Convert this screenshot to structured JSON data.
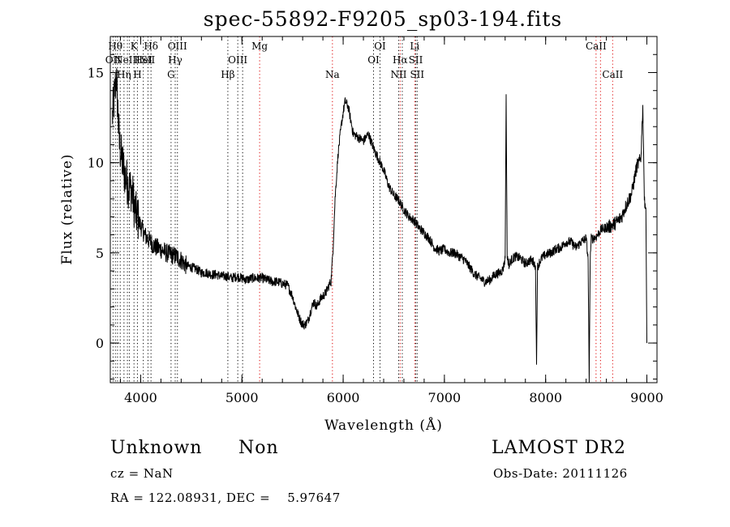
{
  "chart_data": {
    "type": "line",
    "title": "spec-55892-F9205_sp03-194.fits",
    "xlabel": "Wavelength (Å)",
    "ylabel": "Flux (relative)",
    "xlim": [
      3700,
      9100
    ],
    "ylim": [
      -2.2,
      17.0
    ],
    "xticks": [
      {
        "v": 4000,
        "label": "4000"
      },
      {
        "v": 5000,
        "label": "5000"
      },
      {
        "v": 6000,
        "label": "6000"
      },
      {
        "v": 7000,
        "label": "7000"
      },
      {
        "v": 8000,
        "label": "8000"
      },
      {
        "v": 9000,
        "label": "9000"
      }
    ],
    "yticks": [
      {
        "v": 0,
        "label": "0"
      },
      {
        "v": 5,
        "label": "5"
      },
      {
        "v": 10,
        "label": "10"
      },
      {
        "v": 15,
        "label": "15"
      }
    ],
    "x_minor_step": 200,
    "y_minor_step": 1,
    "grid": false,
    "series": [
      {
        "x": [
          3720,
          3760,
          3790,
          3820,
          3850,
          3880,
          3910,
          3950,
          4000,
          4050,
          4100,
          4150,
          4200,
          4250,
          4300,
          4350,
          4400,
          4450,
          4500,
          4550,
          4600,
          4650,
          4700,
          4750,
          4800,
          4850,
          4900,
          4950,
          5000,
          5050,
          5100,
          5150,
          5200,
          5250,
          5300,
          5350,
          5400,
          5450,
          5500,
          5530,
          5560,
          5590,
          5620,
          5650,
          5680,
          5710,
          5740,
          5770,
          5800,
          5830,
          5860,
          5880,
          5900,
          5920,
          5950,
          5980,
          6000,
          6020,
          6050,
          6080,
          6100,
          6150,
          6200,
          6250,
          6300,
          6350,
          6400,
          6450,
          6500,
          6550,
          6600,
          6650,
          6700,
          6750,
          6800,
          6850,
          6900,
          6950,
          7000,
          7050,
          7100,
          7150,
          7200,
          7250,
          7300,
          7350,
          7400,
          7450,
          7500,
          7550,
          7580,
          7600,
          7610,
          7620,
          7640,
          7660,
          7700,
          7750,
          7800,
          7850,
          7880,
          7900,
          7910,
          7920,
          7940,
          7960,
          8000,
          8050,
          8100,
          8150,
          8200,
          8250,
          8300,
          8350,
          8400,
          8420,
          8430,
          8440,
          8450,
          8470,
          8500,
          8550,
          8600,
          8650,
          8700,
          8750,
          8800,
          8850,
          8900,
          8940,
          8960,
          8975,
          8990,
          9000
        ],
        "y": [
          12.5,
          14.8,
          11.0,
          10.0,
          9.2,
          8.7,
          8.5,
          7.2,
          6.5,
          5.9,
          5.6,
          5.3,
          5.2,
          5.0,
          4.9,
          4.8,
          4.6,
          4.3,
          4.2,
          4.1,
          3.9,
          3.9,
          3.8,
          3.8,
          3.7,
          3.7,
          3.6,
          3.7,
          3.6,
          3.5,
          3.6,
          3.6,
          3.6,
          3.5,
          3.4,
          3.4,
          3.3,
          3.2,
          2.6,
          2.0,
          1.5,
          1.1,
          1.0,
          1.2,
          1.8,
          2.3,
          2.0,
          2.4,
          2.6,
          2.8,
          3.2,
          3.4,
          5.2,
          8.0,
          10.5,
          12.0,
          12.8,
          13.4,
          13.1,
          12.2,
          11.6,
          11.4,
          11.2,
          11.6,
          10.8,
          10.2,
          9.6,
          8.7,
          8.2,
          7.9,
          7.4,
          7.0,
          6.8,
          6.4,
          6.1,
          5.8,
          5.3,
          5.1,
          5.2,
          5.0,
          5.0,
          4.8,
          4.6,
          4.2,
          3.8,
          3.6,
          3.4,
          3.5,
          3.8,
          3.9,
          4.1,
          4.7,
          13.8,
          4.8,
          4.3,
          4.6,
          4.8,
          4.7,
          4.4,
          4.6,
          4.5,
          4.3,
          -1.2,
          4.2,
          4.5,
          4.7,
          4.9,
          5.0,
          5.2,
          5.3,
          5.6,
          5.6,
          5.3,
          5.6,
          5.8,
          4.6,
          -2.2,
          4.6,
          5.8,
          5.8,
          5.9,
          6.3,
          6.4,
          6.5,
          6.7,
          7.0,
          7.7,
          8.3,
          9.8,
          10.2,
          13.2,
          8.0,
          7.5,
          0.0
        ]
      }
    ],
    "lines": [
      {
        "x": 3727,
        "color": "#000000",
        "label": "OII",
        "row": 2
      },
      {
        "x": 3750,
        "color": "#000000",
        "label": "Hθ",
        "row": 1
      },
      {
        "x": 3771,
        "color": "#000000",
        "label": "",
        "row": 1
      },
      {
        "x": 3798,
        "color": "#000000",
        "label": "",
        "row": 1
      },
      {
        "x": 3835,
        "color": "#000000",
        "label": "Hη",
        "row": 3
      },
      {
        "x": 3869,
        "color": "#000000",
        "label": "NeIII",
        "row": 2
      },
      {
        "x": 3889,
        "color": "#000000",
        "label": "",
        "row": 2
      },
      {
        "x": 3934,
        "color": "#000000",
        "label": "K",
        "row": 1
      },
      {
        "x": 3968,
        "color": "#000000",
        "label": "H",
        "row": 3
      },
      {
        "x": 4026,
        "color": "#000000",
        "label": "HeI",
        "row": 2
      },
      {
        "x": 4072,
        "color": "#000000",
        "label": "SII",
        "row": 2
      },
      {
        "x": 4102,
        "color": "#000000",
        "label": "Hδ",
        "row": 1
      },
      {
        "x": 4300,
        "color": "#000000",
        "label": "G",
        "row": 3
      },
      {
        "x": 4341,
        "color": "#000000",
        "label": "Hγ",
        "row": 2
      },
      {
        "x": 4363,
        "color": "#000000",
        "label": "OIII",
        "row": 1
      },
      {
        "x": 4861,
        "color": "#000000",
        "label": "Hβ",
        "row": 3
      },
      {
        "x": 4959,
        "color": "#000000",
        "label": "OIII",
        "row": 2
      },
      {
        "x": 5007,
        "color": "#000000",
        "label": "",
        "row": 2
      },
      {
        "x": 5175,
        "color": "#dd0000",
        "label": "Mg",
        "row": 1
      },
      {
        "x": 5894,
        "color": "#dd0000",
        "label": "Na",
        "row": 3
      },
      {
        "x": 6300,
        "color": "#000000",
        "label": "OI",
        "row": 2
      },
      {
        "x": 6364,
        "color": "#000000",
        "label": "OI",
        "row": 1
      },
      {
        "x": 6548,
        "color": "#000000",
        "label": "NII",
        "row": 3
      },
      {
        "x": 6563,
        "color": "#dd0000",
        "label": "Hα",
        "row": 2
      },
      {
        "x": 6584,
        "color": "#000000",
        "label": "",
        "row": 3
      },
      {
        "x": 6707,
        "color": "#dd0000",
        "label": "Li",
        "row": 1
      },
      {
        "x": 6717,
        "color": "#000000",
        "label": "SII",
        "row": 2
      },
      {
        "x": 6731,
        "color": "#000000",
        "label": "SII",
        "row": 3
      },
      {
        "x": 8498,
        "color": "#dd0000",
        "label": "CaII",
        "row": 1
      },
      {
        "x": 8542,
        "color": "#dd0000",
        "label": "",
        "row": 1
      },
      {
        "x": 8662,
        "color": "#dd0000",
        "label": "CaII",
        "row": 3
      }
    ]
  },
  "footer": {
    "classification": "Unknown",
    "subclass": "Non",
    "survey": "LAMOST DR2",
    "cz": "cz = NaN",
    "obs_date": "Obs-Date: 20111126",
    "coords": "RA = 122.08931, DEC =    5.97647"
  }
}
